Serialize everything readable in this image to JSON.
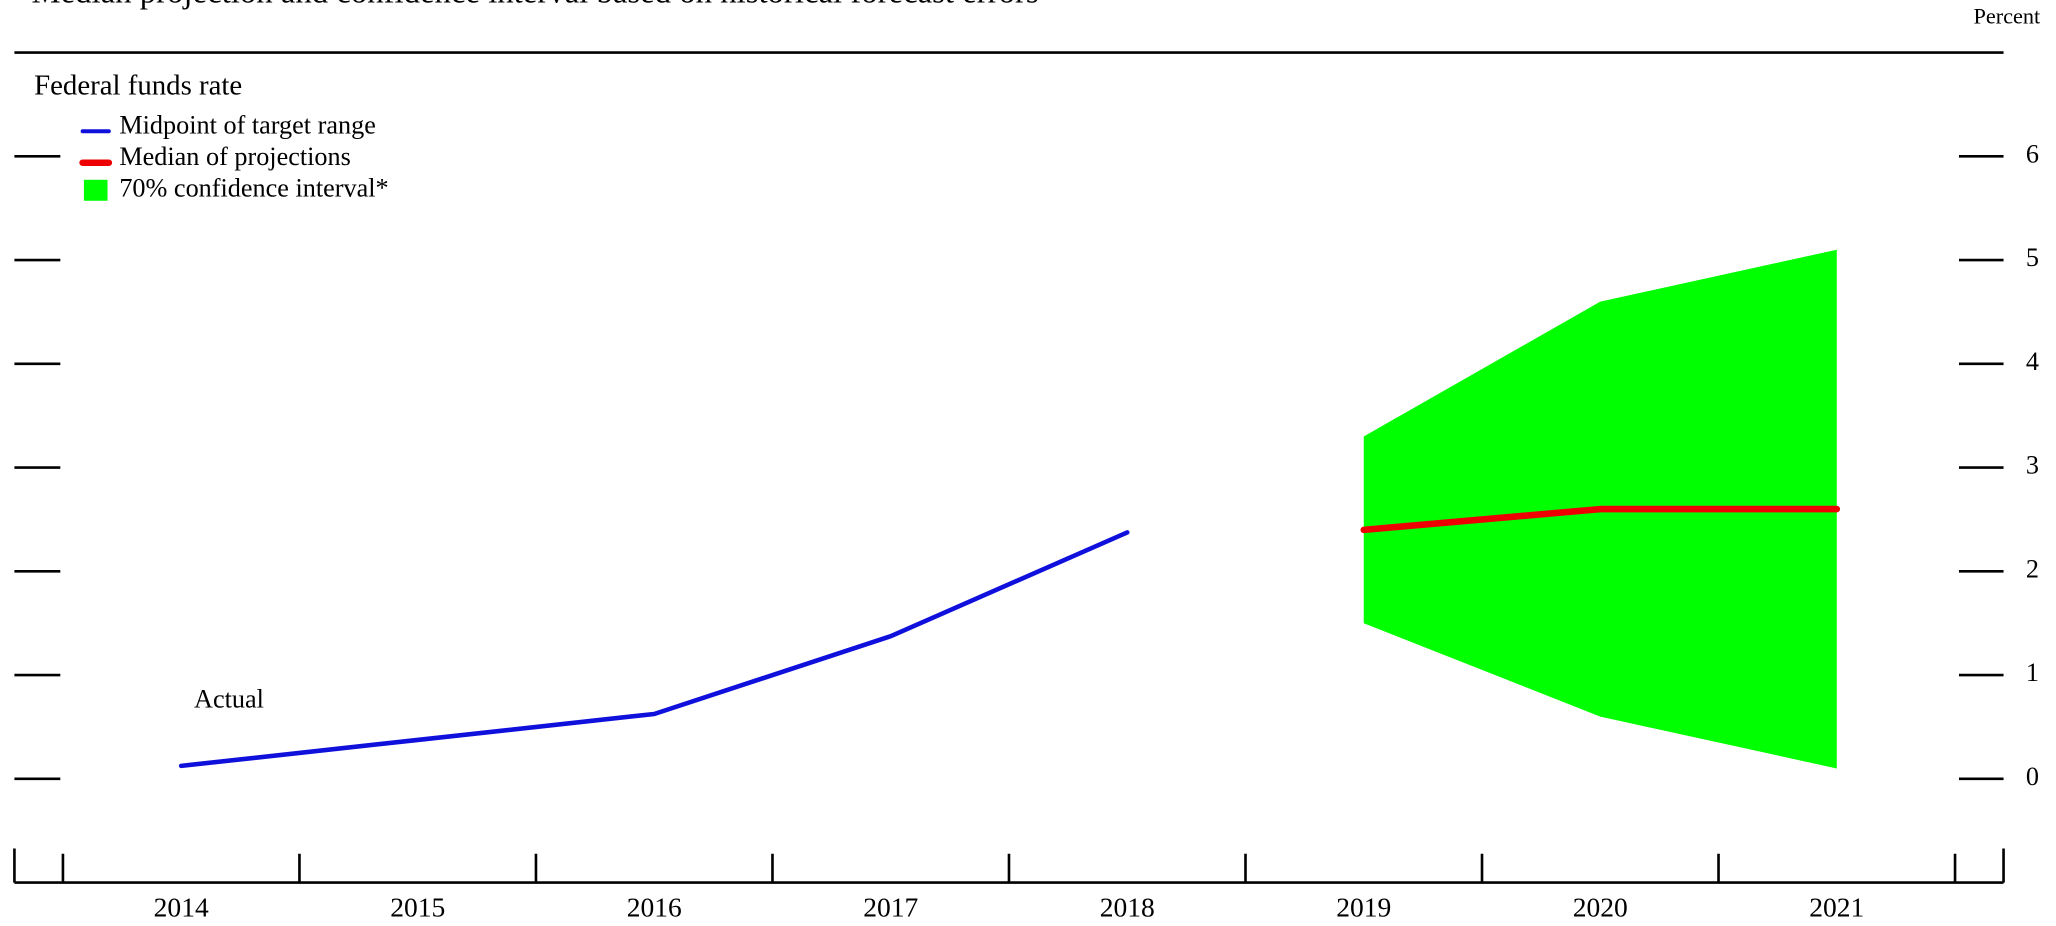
{
  "chart_data": {
    "type": "line",
    "title": "Median projection and confidence interval based on historical forecast errors",
    "y_axis_label": "Percent",
    "panel_title": "Federal funds rate",
    "annotation": "Actual",
    "categories": [
      "2014",
      "2015",
      "2016",
      "2017",
      "2018",
      "2019",
      "2020",
      "2021"
    ],
    "series": [
      {
        "name": "Midpoint of target range",
        "color": "#1010dd",
        "values": [
          0.125,
          0.375,
          0.625,
          1.375,
          2.375,
          null,
          null,
          null
        ]
      },
      {
        "name": "Median of projections",
        "color": "#ee0000",
        "values": [
          null,
          null,
          null,
          null,
          null,
          2.4,
          2.6,
          2.6
        ]
      },
      {
        "name": "70% confidence interval*",
        "color": "#00ff00",
        "type": "band",
        "lower": [
          null,
          null,
          null,
          null,
          null,
          1.5,
          0.6,
          0.1
        ],
        "upper": [
          null,
          null,
          null,
          null,
          null,
          3.3,
          4.6,
          5.1
        ]
      }
    ],
    "ylim": [
      -1,
      7
    ],
    "yticks": [
      0,
      1,
      2,
      3,
      4,
      5,
      6
    ]
  }
}
